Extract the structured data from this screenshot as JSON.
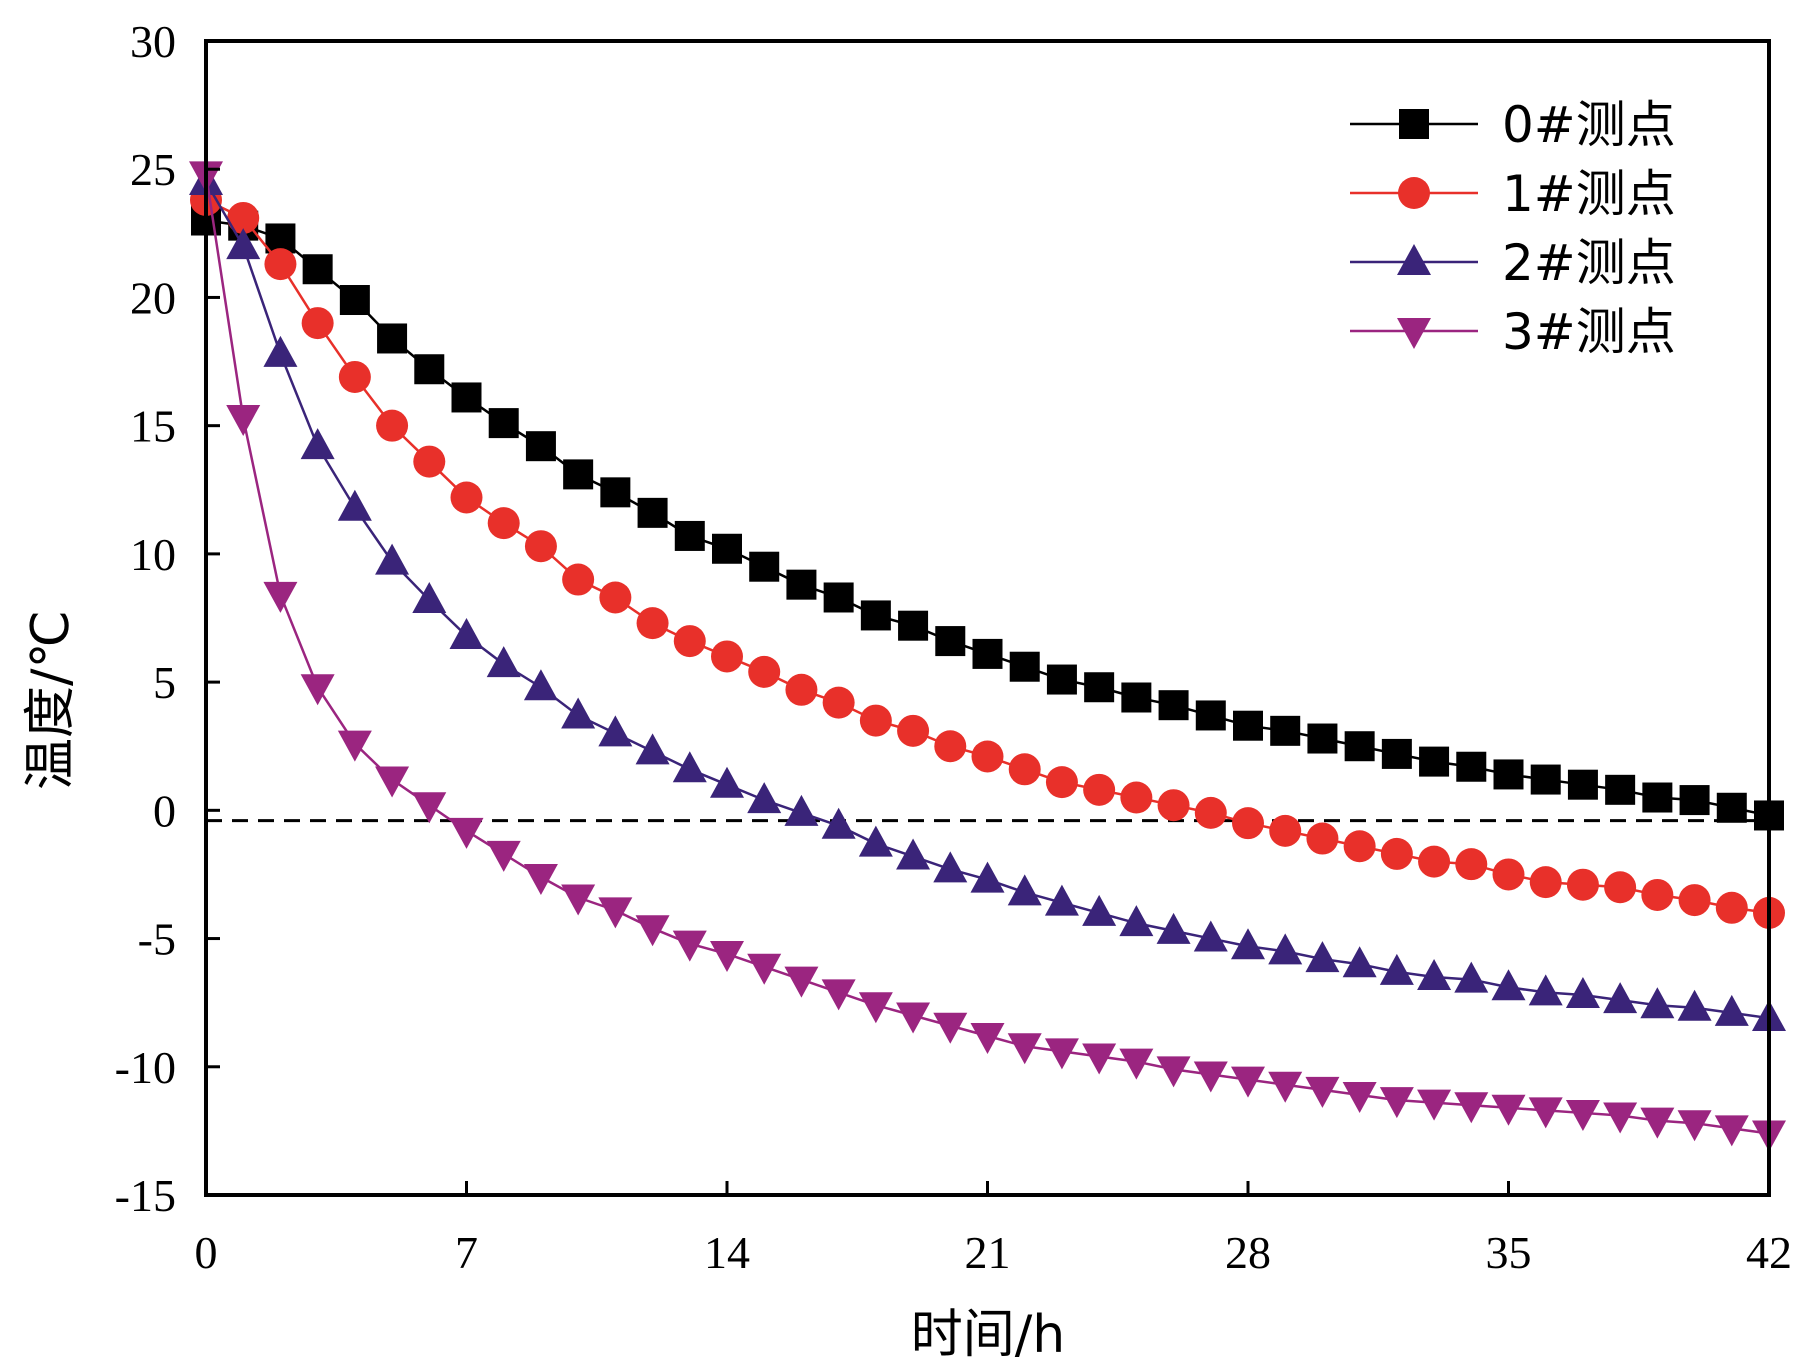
{
  "chart_data": {
    "type": "line",
    "xlabel": "时间/h",
    "ylabel": "温度/℃",
    "xlim": [
      0,
      42
    ],
    "ylim": [
      -15,
      30
    ],
    "xticks": [
      0,
      7,
      14,
      21,
      28,
      35,
      42
    ],
    "yticks": [
      -15,
      -10,
      -5,
      0,
      5,
      10,
      15,
      20,
      25,
      30
    ],
    "grid": false,
    "legend_position": "top-right",
    "reference_line": {
      "y": -0.4,
      "style": "dashed",
      "color": "#000000"
    },
    "x": [
      0,
      1,
      2,
      3,
      4,
      5,
      6,
      7,
      8,
      9,
      10,
      11,
      12,
      13,
      14,
      15,
      16,
      17,
      18,
      19,
      20,
      21,
      22,
      23,
      24,
      25,
      26,
      27,
      28,
      29,
      30,
      31,
      32,
      33,
      34,
      35,
      36,
      37,
      38,
      39,
      40,
      41,
      42
    ],
    "series": [
      {
        "name": "0#测点",
        "color": "#000000",
        "marker": "square",
        "values": [
          23.0,
          22.8,
          22.3,
          21.1,
          19.9,
          18.4,
          17.2,
          16.1,
          15.1,
          14.2,
          13.1,
          12.4,
          11.6,
          10.7,
          10.2,
          9.5,
          8.8,
          8.3,
          7.6,
          7.2,
          6.6,
          6.1,
          5.6,
          5.1,
          4.8,
          4.4,
          4.1,
          3.7,
          3.3,
          3.1,
          2.8,
          2.5,
          2.2,
          1.9,
          1.7,
          1.4,
          1.2,
          1.0,
          0.8,
          0.5,
          0.4,
          0.1,
          -0.2
        ]
      },
      {
        "name": "1#测点",
        "color": "#e8302a",
        "marker": "circle",
        "values": [
          23.8,
          23.1,
          21.3,
          19.0,
          16.9,
          15.0,
          13.6,
          12.2,
          11.2,
          10.3,
          9.0,
          8.3,
          7.3,
          6.6,
          6.0,
          5.4,
          4.7,
          4.2,
          3.5,
          3.1,
          2.5,
          2.1,
          1.6,
          1.1,
          0.8,
          0.5,
          0.2,
          -0.1,
          -0.5,
          -0.8,
          -1.1,
          -1.4,
          -1.7,
          -2.0,
          -2.1,
          -2.5,
          -2.8,
          -2.9,
          -3.0,
          -3.3,
          -3.5,
          -3.8,
          -4.0
        ]
      },
      {
        "name": "2#测点",
        "color": "#3a2479",
        "marker": "triangle-up",
        "values": [
          24.5,
          22.0,
          17.8,
          14.2,
          11.8,
          9.7,
          8.2,
          6.8,
          5.7,
          4.8,
          3.7,
          3.0,
          2.3,
          1.6,
          1.0,
          0.4,
          -0.1,
          -0.6,
          -1.3,
          -1.8,
          -2.3,
          -2.7,
          -3.2,
          -3.6,
          -4.0,
          -4.4,
          -4.7,
          -5.0,
          -5.3,
          -5.5,
          -5.8,
          -6.0,
          -6.3,
          -6.5,
          -6.6,
          -6.9,
          -7.1,
          -7.2,
          -7.4,
          -7.6,
          -7.7,
          -7.9,
          -8.1
        ]
      },
      {
        "name": "3#测点",
        "color": "#9b2580",
        "marker": "triangle-down",
        "values": [
          24.8,
          15.3,
          8.4,
          4.8,
          2.6,
          1.2,
          0.2,
          -0.8,
          -1.7,
          -2.6,
          -3.4,
          -3.9,
          -4.6,
          -5.2,
          -5.6,
          -6.1,
          -6.6,
          -7.1,
          -7.6,
          -8.0,
          -8.4,
          -8.8,
          -9.2,
          -9.4,
          -9.6,
          -9.8,
          -10.1,
          -10.3,
          -10.5,
          -10.7,
          -10.9,
          -11.1,
          -11.3,
          -11.4,
          -11.5,
          -11.6,
          -11.7,
          -11.8,
          -11.9,
          -12.1,
          -12.2,
          -12.4,
          -12.6
        ]
      }
    ]
  }
}
